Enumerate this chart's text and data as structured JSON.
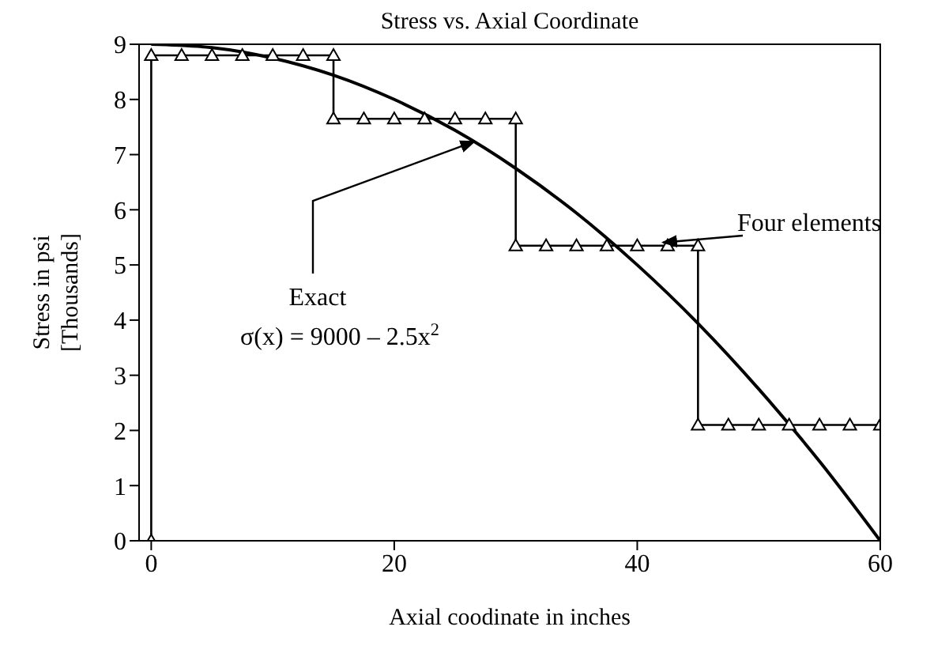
{
  "chart_data": {
    "type": "line",
    "title": "Stress vs. Axial Coordinate",
    "xlabel": "Axial coodinate in inches",
    "ylabel": "Stress in psi\n[Thousands]",
    "xlim": [
      -1,
      60
    ],
    "xticks": [
      0,
      20,
      40,
      60
    ],
    "ylim": [
      0,
      9
    ],
    "yticks": [
      0,
      1,
      2,
      3,
      4,
      5,
      6,
      7,
      8,
      9
    ],
    "series": [
      {
        "type": "line",
        "color": "#000000",
        "marker": "none",
        "x": [
          0,
          5,
          10,
          15,
          20,
          25,
          30,
          35,
          40,
          45,
          50,
          55,
          60
        ],
        "values": [
          9,
          8.94,
          8.75,
          8.44,
          8,
          7.44,
          6.75,
          5.94,
          5,
          3.94,
          2.75,
          1.44,
          0
        ]
      },
      {
        "type": "line",
        "color": "#000000",
        "marker": "triangle",
        "x": [
          0,
          0,
          2.5,
          5,
          7.5,
          10,
          12.5,
          15,
          15,
          17.5,
          20,
          22.5,
          25,
          27.5,
          30,
          30,
          32.5,
          35,
          37.5,
          40,
          42.5,
          45,
          45,
          47.5,
          50,
          52.5,
          55,
          57.5,
          60
        ],
        "values": [
          0,
          8.8,
          8.8,
          8.8,
          8.8,
          8.8,
          8.8,
          8.8,
          7.65,
          7.65,
          7.65,
          7.65,
          7.65,
          7.65,
          7.65,
          5.35,
          5.35,
          5.35,
          5.35,
          5.35,
          5.35,
          5.35,
          2.1,
          2.1,
          2.1,
          2.1,
          2.1,
          2.1,
          2.1
        ]
      }
    ],
    "annotations": [
      {
        "text": "Exact",
        "x": 27,
        "y": 7.18
      },
      "σ(x) = 9000 – 2.5x$^{2}$",
      {
        "text": "Four elements",
        "x": 42.5,
        "y": 5.35
      }
    ]
  }
}
